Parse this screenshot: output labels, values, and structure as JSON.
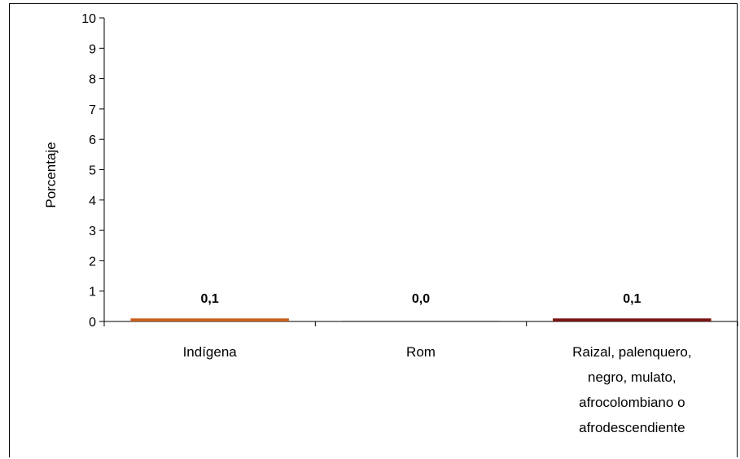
{
  "chart_data": {
    "type": "bar",
    "categories": [
      [
        "Indígena"
      ],
      [
        "Rom"
      ],
      [
        "Raizal, palenquero,",
        "negro, mulato,",
        "afrocolombiano o",
        "afrodescendiente"
      ]
    ],
    "values": [
      0.1,
      0.0,
      0.1
    ],
    "data_labels": [
      "0,1",
      "0,0",
      "0,1"
    ],
    "bar_colors": [
      "#c8601a",
      "#6b6b6b",
      "#7a1414"
    ],
    "title": "",
    "xlabel": "",
    "ylabel": "Porcentaje",
    "ylim": [
      0,
      10
    ],
    "yticks": [
      0,
      1,
      2,
      3,
      4,
      5,
      6,
      7,
      8,
      9,
      10
    ],
    "grid": false,
    "legend": "none"
  }
}
